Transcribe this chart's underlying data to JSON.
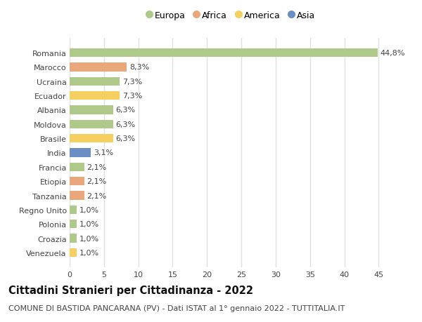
{
  "categories": [
    "Romania",
    "Marocco",
    "Ucraina",
    "Ecuador",
    "Albania",
    "Moldova",
    "Brasile",
    "India",
    "Francia",
    "Etiopia",
    "Tanzania",
    "Regno Unito",
    "Polonia",
    "Croazia",
    "Venezuela"
  ],
  "values": [
    44.8,
    8.3,
    7.3,
    7.3,
    6.3,
    6.3,
    6.3,
    3.1,
    2.1,
    2.1,
    2.1,
    1.0,
    1.0,
    1.0,
    1.0
  ],
  "labels": [
    "44,8%",
    "8,3%",
    "7,3%",
    "7,3%",
    "6,3%",
    "6,3%",
    "6,3%",
    "3,1%",
    "2,1%",
    "2,1%",
    "2,1%",
    "1,0%",
    "1,0%",
    "1,0%",
    "1,0%"
  ],
  "continent": [
    "Europa",
    "Africa",
    "Europa",
    "America",
    "Europa",
    "Europa",
    "America",
    "Asia",
    "Europa",
    "Africa",
    "Africa",
    "Europa",
    "Europa",
    "Europa",
    "America"
  ],
  "colors": {
    "Europa": "#aec98a",
    "Africa": "#e8a87c",
    "America": "#f5d060",
    "Asia": "#6b8fc4"
  },
  "xlim": [
    0,
    47
  ],
  "xticks": [
    0,
    5,
    10,
    15,
    20,
    25,
    30,
    35,
    40,
    45
  ],
  "title": "Cittadini Stranieri per Cittadinanza - 2022",
  "subtitle": "COMUNE DI BASTIDA PANCARANA (PV) - Dati ISTAT al 1° gennaio 2022 - TUTTITALIA.IT",
  "bg_color": "#ffffff",
  "plot_bg_color": "#ffffff",
  "bar_height": 0.6,
  "grid_color": "#e0e0e0",
  "label_fontsize": 8,
  "tick_fontsize": 8,
  "title_fontsize": 10.5,
  "subtitle_fontsize": 8,
  "legend_order": [
    "Europa",
    "Africa",
    "America",
    "Asia"
  ]
}
